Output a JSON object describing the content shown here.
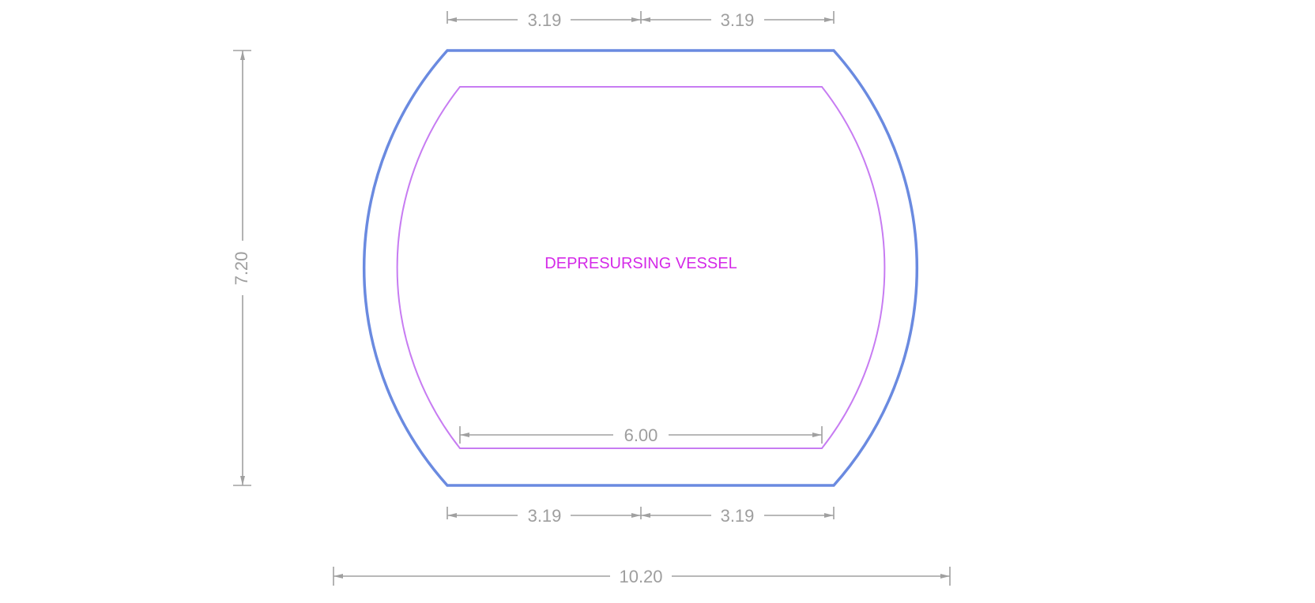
{
  "vessel": {
    "label": "DEPRESURSING VESSEL",
    "outer_color": "#6a8ae0",
    "inner_color": "#c77cf2",
    "label_color": "#d42ae8"
  },
  "dimensions": {
    "top_left": "3.19",
    "top_right": "3.19",
    "bottom_left": "3.19",
    "bottom_right": "3.19",
    "inner_width": "6.00",
    "overall_width": "10.20",
    "overall_height": "7.20",
    "line_color": "#a0a0a0"
  }
}
